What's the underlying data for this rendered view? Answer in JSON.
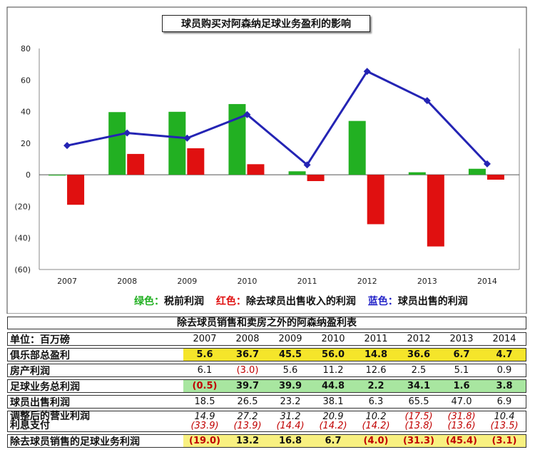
{
  "chart_data": {
    "type": "bar+line",
    "title": "球员购买对阿森纳足球业务盈利的影响",
    "categories": [
      "2007",
      "2008",
      "2009",
      "2010",
      "2011",
      "2012",
      "2013",
      "2014"
    ],
    "ylim": [
      -60,
      80
    ],
    "yticks": [
      80,
      60,
      40,
      20,
      0,
      -20,
      -40,
      -60
    ],
    "ytick_labels": [
      "80",
      "60",
      "40",
      "20",
      "0",
      "(20)",
      "(40)",
      "(60)"
    ],
    "series": [
      {
        "name": "绿色：税前利润",
        "type": "bar",
        "color": "#22b022",
        "values": [
          -0.5,
          39.7,
          39.9,
          44.8,
          2.2,
          34.1,
          1.6,
          3.8
        ]
      },
      {
        "name": "红色：除去球员出售收入的利润",
        "type": "bar",
        "color": "#e01010",
        "values": [
          -19.0,
          13.2,
          16.8,
          6.7,
          -4.0,
          -31.3,
          -45.4,
          -3.1
        ]
      },
      {
        "name": "蓝色：球员出售的利润",
        "type": "line",
        "color": "#2424b4",
        "values": [
          18.5,
          26.5,
          23.2,
          38.1,
          6.3,
          65.5,
          47.0,
          6.9
        ]
      }
    ],
    "legend_position": "bottom"
  },
  "legend": {
    "green_key": "绿色：",
    "green_text": "税前利润",
    "red_key": "红色：",
    "red_text": "除去球员出售收入的利润",
    "blue_key": "蓝色：",
    "blue_text": "球员出售的利润"
  },
  "table": {
    "title": "除去球员销售和卖房之外的阿森纳盈利表",
    "header_label": "单位：百万磅",
    "years": [
      "2007",
      "2008",
      "2009",
      "2010",
      "2011",
      "2012",
      "2013",
      "2014"
    ],
    "rows": [
      {
        "label": "俱乐部总盈利",
        "values": [
          "5.6",
          "36.7",
          "45.5",
          "56.0",
          "14.8",
          "36.6",
          "6.7",
          "4.7"
        ]
      },
      {
        "label": "房产利润",
        "values": [
          "6.1",
          "(3.0)",
          "5.6",
          "11.2",
          "12.6",
          "2.5",
          "5.1",
          "0.9"
        ]
      },
      {
        "label": "足球业务总利润",
        "values": [
          "(0.5)",
          "39.7",
          "39.9",
          "44.8",
          "2.2",
          "34.1",
          "1.6",
          "3.8"
        ]
      },
      {
        "label": "球员出售利润",
        "values": [
          "18.5",
          "26.5",
          "23.2",
          "38.1",
          "6.3",
          "65.5",
          "47.0",
          "6.9"
        ]
      },
      {
        "label": "调整后的营业利润",
        "label2": "利息支付",
        "values": [
          "14.9",
          "27.2",
          "31.2",
          "20.9",
          "10.2",
          "(17.5)",
          "(31.8)",
          "10.4"
        ],
        "values2": [
          "(33.9)",
          "(13.9)",
          "(14.4)",
          "(14.2)",
          "(14.2)",
          "(13.8)",
          "(13.6)",
          "(13.5)"
        ]
      },
      {
        "label": "除去球员销售的足球业务利润",
        "values": [
          "(19.0)",
          "13.2",
          "16.8",
          "6.7",
          "(4.0)",
          "(31.3)",
          "(45.4)",
          "(3.1)"
        ]
      }
    ]
  }
}
